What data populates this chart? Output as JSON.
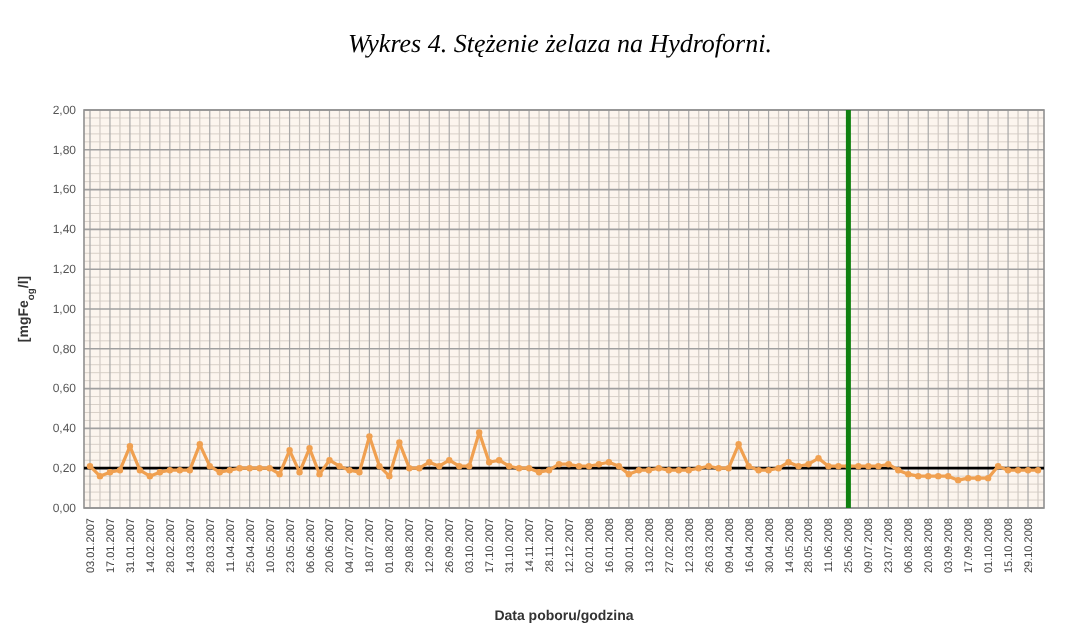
{
  "chart_data": {
    "type": "line",
    "title": "Wykres 4. Stężenie żelaza na Hydroforni.",
    "xlabel": "Data poboru/godzina",
    "ylabel": "[mgFe$_{og}$/l]",
    "categories": [
      "03.01.2007",
      null,
      "17.01.2007",
      null,
      "31.01.2007",
      null,
      "14.02.2007",
      null,
      "28.02.2007",
      null,
      "14.03.2007",
      null,
      "28.03.2007",
      null,
      "11.04.2007",
      null,
      "25.04.2007",
      null,
      "10.05.2007",
      null,
      "23.05.2007",
      null,
      "06.06.2007",
      null,
      "20.06.2007",
      null,
      "04.07.2007",
      null,
      "18.07.2007",
      null,
      "01.08.2007",
      null,
      "29.08.2007",
      null,
      "12.09.2007",
      null,
      "26.09.2007",
      null,
      "03.10.2007",
      null,
      "17.10.2007",
      null,
      "31.10.2007",
      null,
      "14.11.2007",
      null,
      "28.11.2007",
      null,
      "12.12.2007",
      null,
      "02.01.2008",
      null,
      "16.01.2008",
      null,
      "30.01.2008",
      null,
      "13.02.2008",
      null,
      "27.02.2008",
      null,
      "12.03.2008",
      null,
      "26.03.2008",
      null,
      "09.04.2008",
      null,
      "16.04.2008",
      null,
      "30.04.2008",
      null,
      "14.05.2008",
      null,
      "28.05.2008",
      null,
      "11.06.2008",
      null,
      "25.06.2008",
      null,
      "09.07.2008",
      null,
      "23.07.2008",
      null,
      "06.08.2008",
      null,
      "20.08.2008",
      null,
      "03.09.2008",
      null,
      "17.09.2008",
      null,
      "01.10.2008",
      null,
      "15.10.2008",
      null,
      "29.10.2008",
      null
    ],
    "series": [
      {
        "color": "#f0a050",
        "values": [
          0.21,
          0.16,
          0.18,
          0.19,
          0.31,
          0.19,
          0.16,
          0.18,
          0.19,
          0.19,
          0.19,
          0.32,
          0.21,
          0.18,
          0.19,
          0.2,
          0.2,
          0.2,
          0.2,
          0.17,
          0.29,
          0.18,
          0.3,
          0.17,
          0.24,
          0.21,
          0.19,
          0.18,
          0.36,
          0.21,
          0.16,
          0.33,
          0.2,
          0.2,
          0.23,
          0.21,
          0.24,
          0.21,
          0.21,
          0.38,
          0.23,
          0.24,
          0.21,
          0.2,
          0.2,
          0.18,
          0.19,
          0.22,
          0.22,
          0.21,
          0.21,
          0.22,
          0.23,
          0.21,
          0.17,
          0.19,
          0.19,
          0.2,
          0.19,
          0.19,
          0.19,
          0.2,
          0.21,
          0.2,
          0.2,
          0.32,
          0.21,
          0.19,
          0.19,
          0.2,
          0.23,
          0.21,
          0.22,
          0.25,
          0.21,
          0.21,
          0.21,
          0.21,
          0.21,
          0.21,
          0.22,
          0.19,
          0.17,
          0.16,
          0.16,
          0.16,
          0.16,
          0.14,
          0.15,
          0.15,
          0.15,
          0.21,
          0.19,
          0.19,
          0.19,
          0.19
        ]
      }
    ],
    "ylim": [
      0,
      2
    ],
    "yticks": [
      {
        "value": 0,
        "label": "0,00"
      },
      {
        "value": 0.2,
        "label": "0,20"
      },
      {
        "value": 0.4,
        "label": "0,40"
      },
      {
        "value": 0.6,
        "label": "0,60"
      },
      {
        "value": 0.8,
        "label": "0,80"
      },
      {
        "value": 1,
        "label": "1,00"
      },
      {
        "value": 1.2,
        "label": "1,20"
      },
      {
        "value": 1.4,
        "label": "1,40"
      },
      {
        "value": 1.6,
        "label": "1,60"
      },
      {
        "value": 1.8,
        "label": "1,80"
      },
      {
        "value": 2,
        "label": "2,00"
      }
    ],
    "grid": true,
    "marker": "circle",
    "line_style": "solid",
    "ref_lines": [
      {
        "axis": "y",
        "value": 0.2,
        "color": "#000000"
      },
      {
        "axis": "x",
        "value": "25.06.2008",
        "color": "#108010"
      }
    ]
  }
}
